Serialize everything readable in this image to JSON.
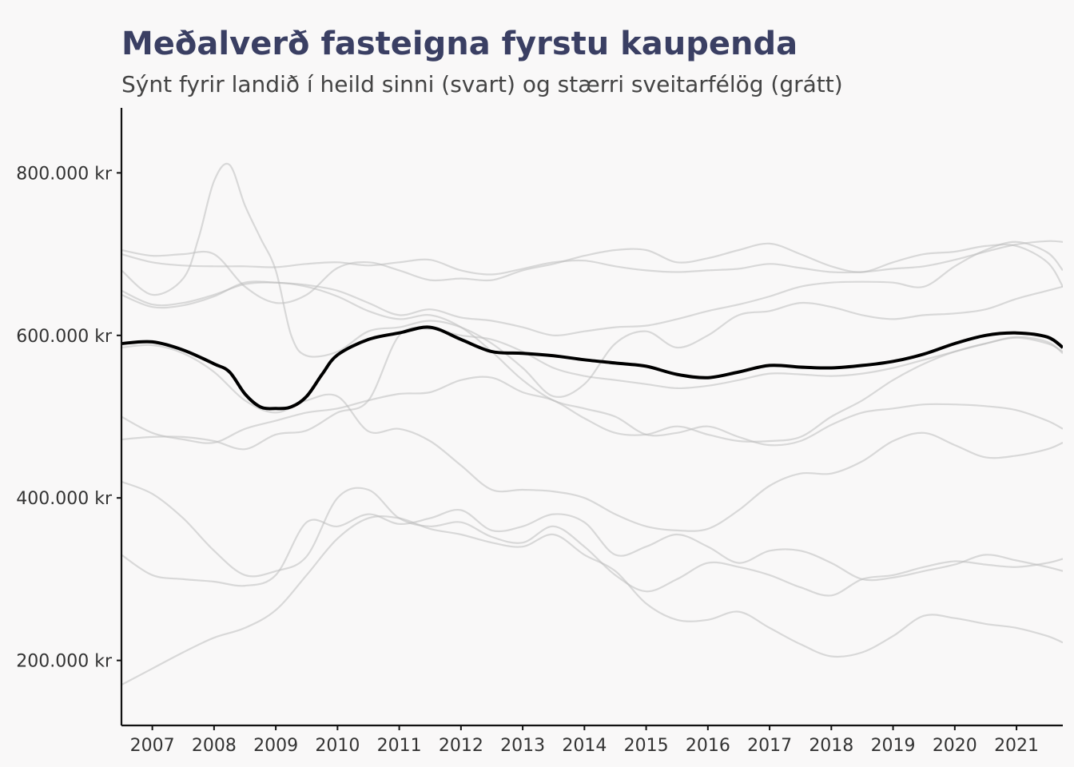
{
  "chart_data": {
    "type": "line",
    "title": "Meðalverð fasteigna fyrstu kaupenda",
    "subtitle": "Sýnt fyrir landið í heild sinni (svart) og stærri sveitarfélög (grátt)",
    "xlabel": "",
    "ylabel": "",
    "xlim": [
      2006.5,
      2021.75
    ],
    "ylim": [
      120000,
      880000
    ],
    "grid": false,
    "x_ticks": [
      2007,
      2008,
      2009,
      2010,
      2011,
      2012,
      2013,
      2014,
      2015,
      2016,
      2017,
      2018,
      2019,
      2020,
      2021
    ],
    "x_tick_labels": [
      "2007",
      "2008",
      "2009",
      "2010",
      "2011",
      "2012",
      "2013",
      "2014",
      "2015",
      "2016",
      "2017",
      "2018",
      "2019",
      "2020",
      "2021"
    ],
    "y_ticks": [
      200000,
      400000,
      600000,
      800000
    ],
    "y_tick_labels": [
      "200.000 kr",
      "400.000 kr",
      "600.000 kr",
      "800.000 kr"
    ],
    "series_main": {
      "color": "#000000",
      "x": [
        2006.5,
        2007,
        2007.5,
        2008,
        2008.25,
        2008.5,
        2008.75,
        2009,
        2009.25,
        2009.5,
        2009.75,
        2010,
        2010.5,
        2011,
        2011.5,
        2012,
        2012.5,
        2013,
        2013.5,
        2014,
        2014.5,
        2015,
        2015.5,
        2016,
        2016.5,
        2017,
        2017.5,
        2018,
        2018.5,
        2019,
        2019.5,
        2020,
        2020.5,
        2021,
        2021.5,
        2021.75
      ],
      "y": [
        590000,
        592000,
        582000,
        565000,
        555000,
        528000,
        512000,
        510000,
        512000,
        525000,
        552000,
        576000,
        595000,
        603000,
        610000,
        595000,
        580000,
        578000,
        575000,
        570000,
        566000,
        562000,
        552000,
        548000,
        555000,
        563000,
        561000,
        560000,
        563000,
        568000,
        577000,
        590000,
        600000,
        603000,
        598000,
        585000
      ]
    },
    "series_grey": [
      {
        "color": "#bdbdbd",
        "x": [
          2006.5,
          2007,
          2007.5,
          2007.75,
          2008,
          2008.25,
          2008.5,
          2008.75,
          2009,
          2009.25,
          2009.5,
          2010,
          2010.5,
          2011,
          2011.5,
          2012,
          2012.5,
          2013,
          2013.5,
          2014,
          2014.5,
          2015,
          2015.5,
          2016,
          2016.5,
          2017,
          2017.5,
          2018,
          2018.5,
          2019,
          2019.5,
          2020,
          2020.5,
          2021,
          2021.5,
          2021.75
        ],
        "y": [
          680000,
          650000,
          670000,
          720000,
          790000,
          810000,
          760000,
          720000,
          680000,
          600000,
          575000,
          580000,
          605000,
          610000,
          618000,
          610000,
          590000,
          560000,
          525000,
          540000,
          590000,
          605000,
          585000,
          600000,
          625000,
          630000,
          640000,
          635000,
          625000,
          620000,
          625000,
          627000,
          632000,
          645000,
          655000,
          660000
        ]
      },
      {
        "color": "#bdbdbd",
        "x": [
          2006.5,
          2007,
          2007.5,
          2008,
          2008.5,
          2009,
          2009.5,
          2010,
          2010.5,
          2011,
          2011.5,
          2012,
          2012.5,
          2013,
          2013.5,
          2014,
          2014.5,
          2015,
          2015.5,
          2016,
          2016.5,
          2017,
          2017.5,
          2018,
          2018.5,
          2019,
          2019.5,
          2020,
          2020.5,
          2021,
          2021.5,
          2021.75
        ],
        "y": [
          705000,
          698000,
          700000,
          700000,
          660000,
          640000,
          650000,
          683000,
          690000,
          680000,
          668000,
          670000,
          668000,
          680000,
          688000,
          698000,
          705000,
          705000,
          690000,
          695000,
          705000,
          713000,
          700000,
          685000,
          678000,
          690000,
          700000,
          703000,
          710000,
          710000,
          690000,
          660000
        ]
      },
      {
        "color": "#bdbdbd",
        "x": [
          2006.5,
          2007,
          2007.5,
          2008,
          2008.5,
          2009,
          2009.5,
          2010,
          2010.5,
          2011,
          2011.5,
          2012,
          2012.5,
          2013,
          2013.5,
          2014,
          2014.5,
          2015,
          2015.5,
          2016,
          2016.5,
          2017,
          2017.5,
          2018,
          2018.5,
          2019,
          2019.5,
          2020,
          2020.5,
          2021,
          2021.5,
          2021.75
        ],
        "y": [
          700000,
          690000,
          686000,
          685000,
          685000,
          684000,
          688000,
          690000,
          686000,
          690000,
          693000,
          680000,
          675000,
          682000,
          690000,
          692000,
          685000,
          680000,
          678000,
          680000,
          682000,
          688000,
          683000,
          678000,
          678000,
          682000,
          685000,
          693000,
          703000,
          712000,
          716000,
          715000
        ]
      },
      {
        "color": "#bdbdbd",
        "x": [
          2006.5,
          2007,
          2007.5,
          2008,
          2008.5,
          2009,
          2009.5,
          2010,
          2010.5,
          2011,
          2011.5,
          2012,
          2012.5,
          2013,
          2013.5,
          2014,
          2014.5,
          2015,
          2015.5,
          2016,
          2016.5,
          2017,
          2017.5,
          2018,
          2018.5,
          2019,
          2019.5,
          2020,
          2020.5,
          2021,
          2021.5,
          2021.75
        ],
        "y": [
          655000,
          638000,
          640000,
          650000,
          663000,
          665000,
          660000,
          648000,
          630000,
          620000,
          625000,
          610000,
          580000,
          545000,
          520000,
          510000,
          500000,
          478000,
          480000,
          488000,
          475000,
          465000,
          470000,
          490000,
          505000,
          510000,
          515000,
          515000,
          513000,
          508000,
          495000,
          485000
        ]
      },
      {
        "color": "#bdbdbd",
        "x": [
          2006.5,
          2007,
          2007.5,
          2008,
          2008.5,
          2009,
          2009.5,
          2010,
          2010.5,
          2011,
          2011.5,
          2012,
          2012.5,
          2013,
          2013.5,
          2014,
          2014.5,
          2015,
          2015.5,
          2016,
          2016.5,
          2017,
          2017.5,
          2018,
          2018.5,
          2019,
          2019.5,
          2020,
          2020.5,
          2021,
          2021.5,
          2021.75
        ],
        "y": [
          585000,
          588000,
          578000,
          555000,
          520000,
          505000,
          520000,
          525000,
          482000,
          485000,
          470000,
          440000,
          410000,
          410000,
          408000,
          400000,
          380000,
          365000,
          360000,
          362000,
          385000,
          415000,
          430000,
          430000,
          445000,
          470000,
          480000,
          465000,
          450000,
          452000,
          460000,
          468000
        ]
      },
      {
        "color": "#bdbdbd",
        "x": [
          2006.5,
          2007,
          2007.5,
          2008,
          2008.5,
          2009,
          2009.5,
          2010,
          2010.5,
          2011,
          2011.5,
          2012,
          2012.5,
          2013,
          2013.5,
          2014,
          2014.5,
          2015,
          2015.5,
          2016,
          2016.5,
          2017,
          2017.5,
          2018,
          2018.5,
          2019,
          2019.5,
          2020,
          2020.5,
          2021,
          2021.5,
          2021.75
        ],
        "y": [
          500000,
          480000,
          472000,
          468000,
          485000,
          495000,
          505000,
          510000,
          520000,
          528000,
          530000,
          545000,
          548000,
          530000,
          520000,
          498000,
          480000,
          478000,
          488000,
          478000,
          470000,
          470000,
          475000,
          500000,
          520000,
          545000,
          565000,
          580000,
          590000,
          597000,
          590000,
          580000
        ]
      },
      {
        "color": "#bdbdbd",
        "x": [
          2006.5,
          2007,
          2007.5,
          2008,
          2008.5,
          2009,
          2009.5,
          2010,
          2010.5,
          2011,
          2011.5,
          2012,
          2012.5,
          2013,
          2013.5,
          2014,
          2014.5,
          2015,
          2015.5,
          2016,
          2016.5,
          2017,
          2017.5,
          2018,
          2018.5,
          2019,
          2019.5,
          2020,
          2020.5,
          2021,
          2021.5,
          2021.75
        ],
        "y": [
          472000,
          475000,
          475000,
          470000,
          460000,
          478000,
          483000,
          505000,
          520000,
          600000,
          608000,
          600000,
          595000,
          580000,
          560000,
          550000,
          545000,
          540000,
          535000,
          538000,
          545000,
          553000,
          552000,
          550000,
          553000,
          560000,
          570000,
          580000,
          590000,
          598000,
          592000,
          578000
        ]
      },
      {
        "color": "#bdbdbd",
        "x": [
          2006.5,
          2007,
          2007.5,
          2008,
          2008.5,
          2009,
          2009.5,
          2010,
          2010.5,
          2011,
          2011.5,
          2012,
          2012.5,
          2013,
          2013.5,
          2014,
          2014.5,
          2015,
          2015.5,
          2016,
          2016.5,
          2017,
          2017.5,
          2018,
          2018.5,
          2019,
          2019.5,
          2020,
          2020.5,
          2021,
          2021.5,
          2021.75
        ],
        "y": [
          420000,
          405000,
          375000,
          335000,
          305000,
          310000,
          328000,
          400000,
          410000,
          375000,
          365000,
          370000,
          352000,
          345000,
          365000,
          340000,
          305000,
          285000,
          300000,
          320000,
          315000,
          305000,
          290000,
          280000,
          300000,
          305000,
          315000,
          322000,
          318000,
          315000,
          320000,
          325000
        ]
      },
      {
        "color": "#bdbdbd",
        "x": [
          2006.5,
          2007,
          2007.5,
          2008,
          2008.5,
          2009,
          2009.5,
          2010,
          2010.5,
          2011,
          2011.5,
          2012,
          2012.5,
          2013,
          2013.5,
          2014,
          2014.5,
          2015,
          2015.5,
          2016,
          2016.5,
          2017,
          2017.5,
          2018,
          2018.5,
          2019,
          2019.5,
          2020,
          2020.5,
          2021,
          2021.5,
          2021.75
        ],
        "y": [
          330000,
          305000,
          300000,
          297000,
          292000,
          305000,
          370000,
          365000,
          380000,
          368000,
          375000,
          385000,
          360000,
          365000,
          380000,
          370000,
          330000,
          340000,
          355000,
          340000,
          320000,
          335000,
          335000,
          320000,
          300000,
          302000,
          310000,
          318000,
          330000,
          323000,
          315000,
          310000
        ]
      },
      {
        "color": "#bdbdbd",
        "x": [
          2006.5,
          2007,
          2007.5,
          2008,
          2008.5,
          2009,
          2009.5,
          2010,
          2010.5,
          2011,
          2011.5,
          2012,
          2012.5,
          2013,
          2013.5,
          2014,
          2014.5,
          2015,
          2015.5,
          2016,
          2016.5,
          2017,
          2017.5,
          2018,
          2018.5,
          2019,
          2019.5,
          2020,
          2020.5,
          2021,
          2021.5,
          2021.75
        ],
        "y": [
          170000,
          190000,
          210000,
          228000,
          240000,
          262000,
          305000,
          350000,
          375000,
          375000,
          362000,
          355000,
          345000,
          340000,
          355000,
          330000,
          310000,
          270000,
          250000,
          250000,
          260000,
          240000,
          220000,
          205000,
          210000,
          230000,
          255000,
          252000,
          245000,
          240000,
          230000,
          222000
        ]
      },
      {
        "color": "#bdbdbd",
        "x": [
          2006.5,
          2007,
          2007.5,
          2008,
          2008.5,
          2009,
          2009.5,
          2010,
          2010.5,
          2011,
          2011.5,
          2012,
          2012.5,
          2013,
          2013.5,
          2014,
          2014.5,
          2015,
          2015.5,
          2016,
          2016.5,
          2017,
          2017.5,
          2018,
          2018.5,
          2019,
          2019.5,
          2020,
          2020.5,
          2021,
          2021.5,
          2021.75
        ],
        "y": [
          650000,
          635000,
          637000,
          648000,
          665000,
          665000,
          662000,
          655000,
          640000,
          625000,
          632000,
          622000,
          618000,
          610000,
          600000,
          605000,
          610000,
          612000,
          620000,
          630000,
          638000,
          648000,
          660000,
          665000,
          666000,
          665000,
          660000,
          685000,
          705000,
          715000,
          702000,
          680000
        ]
      }
    ]
  }
}
